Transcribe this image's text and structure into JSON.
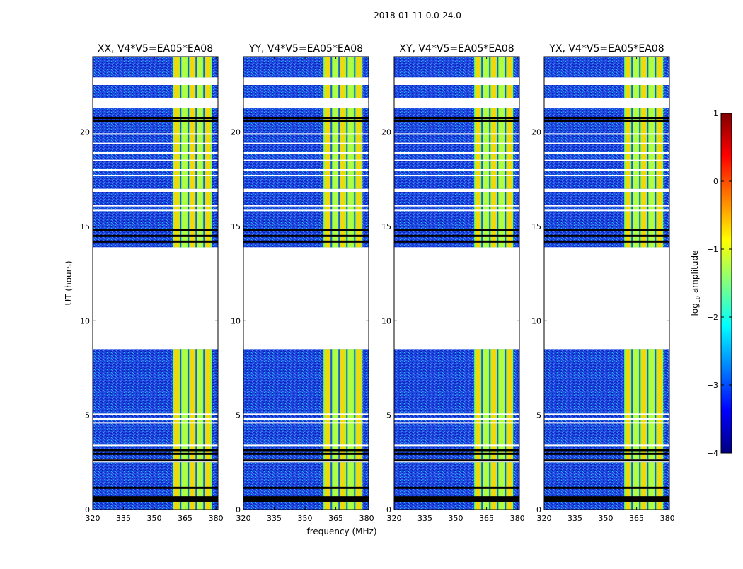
{
  "figure": {
    "suptitle": "2018-01-11 0.0-24.0"
  },
  "chart_data": [
    {
      "type": "heatmap",
      "title": "XX, V4*V5=EA05*EA08",
      "xlabel": "",
      "ylabel": "UT (hours)",
      "xlim": [
        320,
        381
      ],
      "ylim": [
        0,
        24
      ],
      "xticks": [
        320,
        335,
        350,
        365,
        380
      ],
      "yticks": [
        0,
        5,
        10,
        15,
        20
      ],
      "high_amplitude_band_mhz": [
        359,
        378
      ],
      "data_blocks_hours": [
        [
          0,
          2.5
        ],
        [
          2.7,
          8.5
        ],
        [
          13.9,
          16.8
        ],
        [
          17.0,
          21.3
        ],
        [
          21.8,
          22.5
        ],
        [
          22.9,
          24
        ]
      ],
      "flagged_rows_hours": [
        0.45,
        0.55,
        0.65,
        1.15,
        2.6,
        2.95,
        3.15,
        14.2,
        14.5,
        14.8,
        20.6,
        20.75
      ]
    },
    {
      "type": "heatmap",
      "title": "YY, V4*V5=EA05*EA08",
      "xlabel": "frequency (MHz)",
      "ylabel": "",
      "xlim": [
        320,
        381
      ],
      "ylim": [
        0,
        24
      ],
      "xticks": [
        320,
        335,
        350,
        365,
        380
      ],
      "yticks": [
        0,
        5,
        10,
        15,
        20
      ],
      "high_amplitude_band_mhz": [
        359,
        378
      ],
      "data_blocks_hours": [
        [
          0,
          2.5
        ],
        [
          2.7,
          8.5
        ],
        [
          13.9,
          16.8
        ],
        [
          17.0,
          21.3
        ],
        [
          21.8,
          22.5
        ],
        [
          22.9,
          24
        ]
      ],
      "flagged_rows_hours": [
        0.45,
        0.55,
        0.65,
        1.15,
        2.6,
        2.95,
        3.15,
        14.2,
        14.5,
        14.8,
        20.6,
        20.75
      ]
    },
    {
      "type": "heatmap",
      "title": "XY, V4*V5=EA05*EA08",
      "xlabel": "",
      "ylabel": "",
      "xlim": [
        320,
        381
      ],
      "ylim": [
        0,
        24
      ],
      "xticks": [
        320,
        335,
        350,
        365,
        380
      ],
      "yticks": [
        0,
        5,
        10,
        15,
        20
      ],
      "high_amplitude_band_mhz": [
        359,
        378
      ],
      "data_blocks_hours": [
        [
          0,
          2.5
        ],
        [
          2.7,
          8.5
        ],
        [
          13.9,
          16.8
        ],
        [
          17.0,
          21.3
        ],
        [
          21.8,
          22.5
        ],
        [
          22.9,
          24
        ]
      ],
      "flagged_rows_hours": [
        0.45,
        0.55,
        0.65,
        1.15,
        2.6,
        2.95,
        3.15,
        14.2,
        14.5,
        14.8,
        20.6,
        20.75
      ]
    },
    {
      "type": "heatmap",
      "title": "YX, V4*V5=EA05*EA08",
      "xlabel": "",
      "ylabel": "",
      "xlim": [
        320,
        381
      ],
      "ylim": [
        0,
        24
      ],
      "xticks": [
        320,
        335,
        350,
        365,
        380
      ],
      "yticks": [
        0,
        5,
        10,
        15,
        20
      ],
      "high_amplitude_band_mhz": [
        359,
        378
      ],
      "data_blocks_hours": [
        [
          0,
          2.5
        ],
        [
          2.7,
          8.5
        ],
        [
          13.9,
          16.8
        ],
        [
          17.0,
          21.3
        ],
        [
          21.8,
          22.5
        ],
        [
          22.9,
          24
        ]
      ],
      "flagged_rows_hours": [
        0.45,
        0.55,
        0.65,
        1.15,
        2.6,
        2.95,
        3.15,
        14.2,
        14.5,
        14.8,
        20.6,
        20.75
      ]
    }
  ],
  "colorbar": {
    "label": "log",
    "label_sub": "10",
    "label_rest": " amplitude",
    "range": [
      -4,
      1
    ],
    "ticks": [
      1,
      0,
      -1,
      -2,
      -3,
      -4
    ],
    "tick_labels": [
      "1",
      "0",
      "−1",
      "−2",
      "−3",
      "−4"
    ],
    "colormap": "jet",
    "colors": [
      "#000080",
      "#0000ff",
      "#0080ff",
      "#00ffff",
      "#80ff80",
      "#ffff00",
      "#ff8000",
      "#ff0000",
      "#800000"
    ]
  },
  "colors": {
    "background_low": "#1a3fd6",
    "band_mid": "#7fff55",
    "band_high": "#ffd400",
    "flag_row": "#000000"
  }
}
